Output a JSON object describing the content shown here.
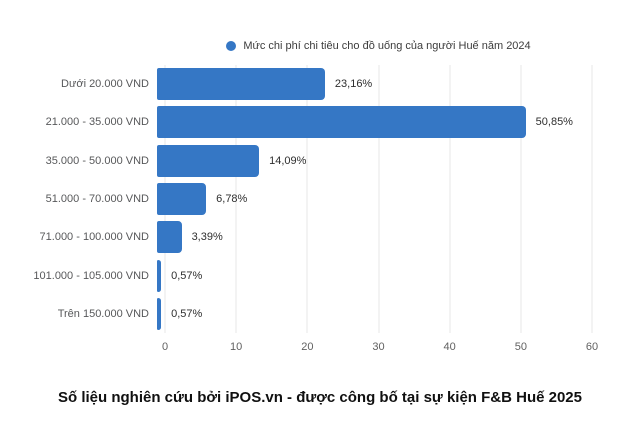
{
  "chart_data": {
    "type": "bar",
    "orientation": "horizontal",
    "legend": "Mức chi phí chi tiêu cho đồ uống của người Huế năm 2024",
    "legend_position": "top-center",
    "categories": [
      "Dưới 20.000 VND",
      "21.000 - 35.000 VND",
      "35.000 - 50.000 VND",
      "51.000 - 70.000 VND",
      "71.000 - 100.000 VND",
      "101.000 - 105.000 VND",
      "Trên 150.000 VND"
    ],
    "values": [
      23.16,
      50.85,
      14.09,
      6.78,
      3.39,
      0.57,
      0.57
    ],
    "value_labels": [
      "23,16%",
      "50,85%",
      "14,09%",
      "6,78%",
      "3,39%",
      "0,57%",
      "0,57%"
    ],
    "xlim": [
      0,
      60
    ],
    "xticks": [
      0,
      10,
      20,
      30,
      40,
      50,
      60
    ],
    "grid": "vertical",
    "bar_color": "#3577C5"
  },
  "footer": {
    "text": "Số liệu nghiên cứu bởi iPOS.vn - được công bố tại sự kiện F&B Huế 2025"
  },
  "colors": {
    "accent": "#3577C5",
    "background": "#FFFFFF",
    "gridline": "#E7E7E7"
  }
}
